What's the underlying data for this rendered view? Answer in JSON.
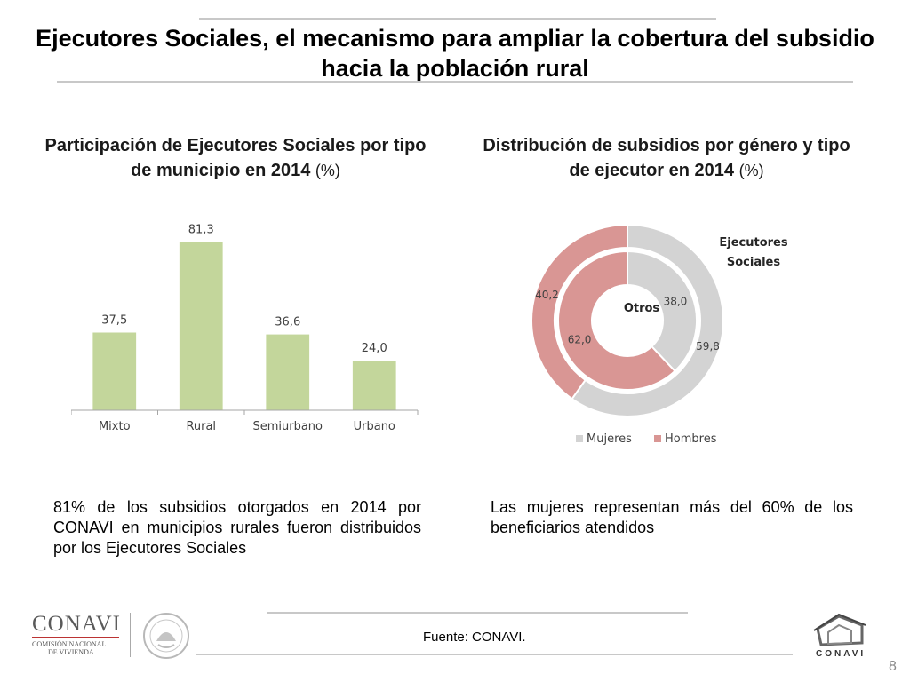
{
  "slide": {
    "title": "Ejecutores Sociales, el mecanismo para ampliar la cobertura del subsidio hacia la población rural",
    "page_number": "8"
  },
  "bar_panel": {
    "title": "Participación de Ejecutores Sociales por tipo de municipio en 2014",
    "unit": "(%)",
    "caption": "81% de los subsidios otorgados en 2014 por CONAVI en municipios rurales fueron distribuidos por los Ejecutores Sociales"
  },
  "donut_panel": {
    "title": "Distribución de subsidios por género y tipo de ejecutor en 2014",
    "unit": "(%)",
    "caption": "Las mujeres representan más del 60% de los beneficiarios atendidos"
  },
  "footer": {
    "source": "Fuente: CONAVI.",
    "logo_left": "CONAVI",
    "logo_left_sub1": "COMISIÓN NACIONAL",
    "logo_left_sub2": "DE VIVIENDA",
    "logo_right": "CONAVI"
  },
  "chart_data": [
    {
      "type": "bar",
      "categories": [
        "Mixto",
        "Rural",
        "Semiurbano",
        "Urbano"
      ],
      "values": [
        37.5,
        81.3,
        36.6,
        24.0
      ],
      "value_labels": [
        "37,5",
        "81,3",
        "36,6",
        "24,0"
      ],
      "ylim": [
        0,
        90
      ],
      "color": "#c3d69b",
      "grid": false
    },
    {
      "type": "pie",
      "style": "donut",
      "rings": [
        {
          "name": "Otros",
          "position": "inner",
          "values": [
            38.0,
            62.0
          ],
          "value_labels": [
            "38,0",
            "62,0"
          ]
        },
        {
          "name": "Ejecutores Sociales",
          "position": "outer",
          "values": [
            59.8,
            40.2
          ],
          "value_labels": [
            "59,8",
            "40,2"
          ]
        }
      ],
      "slices": [
        "Mujeres",
        "Hombres"
      ],
      "colors": {
        "Mujeres": "#d3d3d3",
        "Hombres": "#d99694"
      },
      "legend": [
        "Mujeres",
        "Hombres"
      ],
      "legend_position": "bottom"
    }
  ]
}
